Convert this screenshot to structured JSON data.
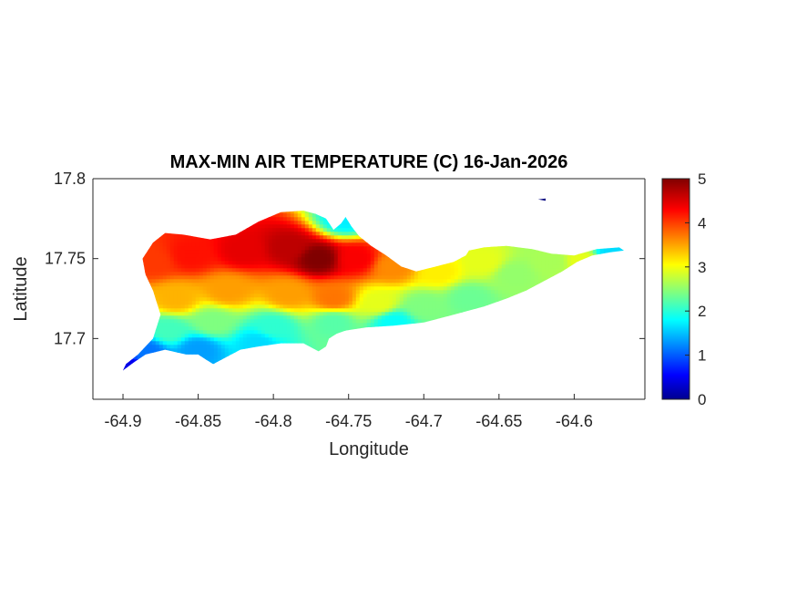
{
  "chart_data": {
    "type": "heatmap",
    "title": "MAX-MIN AIR TEMPERATURE (C) 16-Jan-2026",
    "xlabel": "Longitude",
    "ylabel": "Latitude",
    "xlim": [
      -64.92,
      -64.553
    ],
    "ylim": [
      17.662,
      17.8
    ],
    "x_ticks": [
      -64.9,
      -64.85,
      -64.8,
      -64.75,
      -64.7,
      -64.65,
      -64.6
    ],
    "x_tick_labels": [
      "-64.9",
      "-64.85",
      "-64.8",
      "-64.75",
      "-64.7",
      "-64.65",
      "-64.6"
    ],
    "y_ticks": [
      17.7,
      17.75,
      17.8
    ],
    "y_tick_labels": [
      "17.7",
      "17.75",
      "17.8"
    ],
    "colorbar": {
      "colormap": "jet",
      "range": [
        0,
        5
      ],
      "ticks": [
        0,
        1,
        2,
        3,
        4,
        5
      ],
      "tick_labels": [
        "0",
        "1",
        "2",
        "3",
        "4",
        "5"
      ]
    },
    "grid": false,
    "island_outline": [
      [
        -64.9,
        17.68
      ],
      [
        -64.893,
        17.685
      ],
      [
        -64.885,
        17.69
      ],
      [
        -64.872,
        17.693
      ],
      [
        -64.858,
        17.69
      ],
      [
        -64.85,
        17.69
      ],
      [
        -64.845,
        17.687
      ],
      [
        -64.84,
        17.684
      ],
      [
        -64.832,
        17.688
      ],
      [
        -64.822,
        17.693
      ],
      [
        -64.81,
        17.695
      ],
      [
        -64.795,
        17.697
      ],
      [
        -64.78,
        17.697
      ],
      [
        -64.77,
        17.692
      ],
      [
        -64.765,
        17.695
      ],
      [
        -64.763,
        17.7
      ],
      [
        -64.758,
        17.703
      ],
      [
        -64.752,
        17.705
      ],
      [
        -64.738,
        17.707
      ],
      [
        -64.72,
        17.708
      ],
      [
        -64.7,
        17.71
      ],
      [
        -64.68,
        17.715
      ],
      [
        -64.66,
        17.72
      ],
      [
        -64.645,
        17.725
      ],
      [
        -64.632,
        17.73
      ],
      [
        -64.62,
        17.736
      ],
      [
        -64.608,
        17.742
      ],
      [
        -64.598,
        17.748
      ],
      [
        -64.588,
        17.752
      ],
      [
        -64.576,
        17.754
      ],
      [
        -64.567,
        17.755
      ],
      [
        -64.57,
        17.757
      ],
      [
        -64.585,
        17.756
      ],
      [
        -64.6,
        17.752
      ],
      [
        -64.615,
        17.753
      ],
      [
        -64.628,
        17.756
      ],
      [
        -64.645,
        17.758
      ],
      [
        -64.66,
        17.757
      ],
      [
        -64.67,
        17.755
      ],
      [
        -64.672,
        17.752
      ],
      [
        -64.68,
        17.748
      ],
      [
        -64.692,
        17.745
      ],
      [
        -64.705,
        17.742
      ],
      [
        -64.715,
        17.745
      ],
      [
        -64.725,
        17.752
      ],
      [
        -64.735,
        17.758
      ],
      [
        -64.743,
        17.764
      ],
      [
        -64.748,
        17.77
      ],
      [
        -64.752,
        17.776
      ],
      [
        -64.755,
        17.772
      ],
      [
        -64.76,
        17.768
      ],
      [
        -64.765,
        17.775
      ],
      [
        -64.772,
        17.778
      ],
      [
        -64.78,
        17.78
      ],
      [
        -64.795,
        17.779
      ],
      [
        -64.81,
        17.773
      ],
      [
        -64.825,
        17.765
      ],
      [
        -64.842,
        17.762
      ],
      [
        -64.86,
        17.765
      ],
      [
        -64.872,
        17.766
      ],
      [
        -64.88,
        17.76
      ],
      [
        -64.887,
        17.75
      ],
      [
        -64.885,
        17.74
      ],
      [
        -64.88,
        17.73
      ],
      [
        -64.875,
        17.715
      ],
      [
        -64.88,
        17.7
      ],
      [
        -64.89,
        17.69
      ],
      [
        -64.898,
        17.684
      ]
    ],
    "small_islet": [
      [
        -64.624,
        17.787
      ],
      [
        -64.619,
        17.787
      ]
    ],
    "value_field": {
      "description_points": [
        {
          "lon": -64.77,
          "lat": 17.75,
          "value": 5.0
        },
        {
          "lon": -64.79,
          "lat": 17.757,
          "value": 4.7
        },
        {
          "lon": -64.82,
          "lat": 17.755,
          "value": 4.5
        },
        {
          "lon": -64.855,
          "lat": 17.752,
          "value": 4.3
        },
        {
          "lon": -64.88,
          "lat": 17.748,
          "value": 4.1
        },
        {
          "lon": -64.745,
          "lat": 17.75,
          "value": 4.4
        },
        {
          "lon": -64.72,
          "lat": 17.745,
          "value": 3.7
        },
        {
          "lon": -64.69,
          "lat": 17.742,
          "value": 3.2
        },
        {
          "lon": -64.66,
          "lat": 17.748,
          "value": 3.0
        },
        {
          "lon": -64.64,
          "lat": 17.74,
          "value": 2.6
        },
        {
          "lon": -64.615,
          "lat": 17.748,
          "value": 2.7
        },
        {
          "lon": -64.595,
          "lat": 17.749,
          "value": 3.0
        },
        {
          "lon": -64.575,
          "lat": 17.754,
          "value": 1.7
        },
        {
          "lon": -64.83,
          "lat": 17.73,
          "value": 3.6
        },
        {
          "lon": -64.865,
          "lat": 17.725,
          "value": 3.5
        },
        {
          "lon": -64.79,
          "lat": 17.728,
          "value": 3.6
        },
        {
          "lon": -64.76,
          "lat": 17.725,
          "value": 3.8
        },
        {
          "lon": -64.73,
          "lat": 17.722,
          "value": 3.0
        },
        {
          "lon": -64.7,
          "lat": 17.72,
          "value": 2.5
        },
        {
          "lon": -64.67,
          "lat": 17.725,
          "value": 2.4
        },
        {
          "lon": -64.84,
          "lat": 17.71,
          "value": 2.5
        },
        {
          "lon": -64.87,
          "lat": 17.705,
          "value": 2.2
        },
        {
          "lon": -64.8,
          "lat": 17.707,
          "value": 2.1
        },
        {
          "lon": -64.76,
          "lat": 17.71,
          "value": 2.3
        },
        {
          "lon": -64.72,
          "lat": 17.71,
          "value": 1.9
        },
        {
          "lon": -64.85,
          "lat": 17.693,
          "value": 1.4
        },
        {
          "lon": -64.885,
          "lat": 17.692,
          "value": 1.2
        },
        {
          "lon": -64.81,
          "lat": 17.697,
          "value": 1.7
        },
        {
          "lon": -64.898,
          "lat": 17.682,
          "value": 0.5
        },
        {
          "lon": -64.752,
          "lat": 17.775,
          "value": 1.8
        },
        {
          "lon": -64.622,
          "lat": 17.787,
          "value": 0.2
        }
      ]
    }
  }
}
